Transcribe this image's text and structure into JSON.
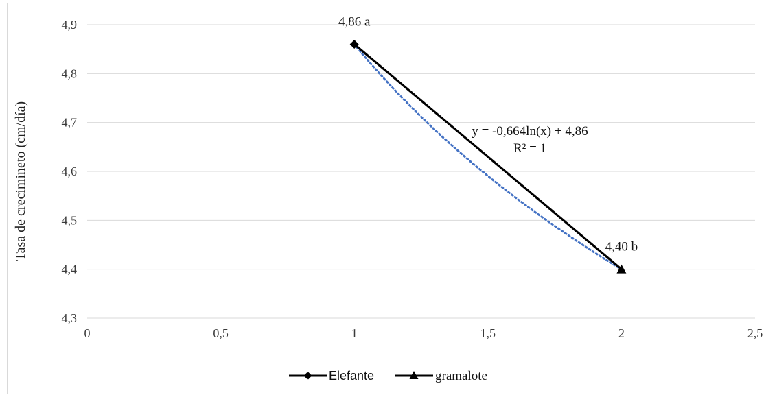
{
  "chart_data": {
    "type": "line",
    "title": "",
    "xlabel": "",
    "ylabel": "Tasa de crecimineto (cm/día)",
    "xlim": [
      0,
      2.5
    ],
    "ylim": [
      4.3,
      4.9
    ],
    "x_ticks": [
      0,
      0.5,
      1,
      1.5,
      2,
      2.5
    ],
    "x_tick_labels": [
      "0",
      "0,5",
      "1",
      "1,5",
      "2",
      "2,5"
    ],
    "y_ticks": [
      4.3,
      4.4,
      4.5,
      4.6,
      4.7,
      4.8,
      4.9
    ],
    "y_tick_labels": [
      "4,3",
      "4,4",
      "4,5",
      "4,6",
      "4,7",
      "4,8",
      "4,9"
    ],
    "grid": {
      "horizontal": true,
      "vertical": false
    },
    "legend_position": "bottom",
    "series": [
      {
        "name": "Elefante",
        "marker": "diamond",
        "color": "#000000",
        "points": [
          [
            1,
            4.86
          ]
        ]
      },
      {
        "name": "gramalote",
        "marker": "triangle",
        "color": "#000000",
        "points": [
          [
            2,
            4.4
          ]
        ]
      }
    ],
    "connector_line": {
      "color": "#000000",
      "points": [
        [
          1,
          4.86
        ],
        [
          2,
          4.4
        ]
      ]
    },
    "trendline": {
      "type": "logarithmic",
      "color": "#4472c4",
      "style": "dotted",
      "a": -0.664,
      "b": 4.86,
      "x_range": [
        1,
        2
      ]
    },
    "data_labels": [
      {
        "text": "4,86 a",
        "x": 1,
        "y": 4.86
      },
      {
        "text": "4,40 b",
        "x": 2,
        "y": 4.4
      }
    ],
    "annotations": {
      "equation": "y = -0,664ln(x) + 4,86",
      "r_squared": "R² = 1"
    }
  }
}
